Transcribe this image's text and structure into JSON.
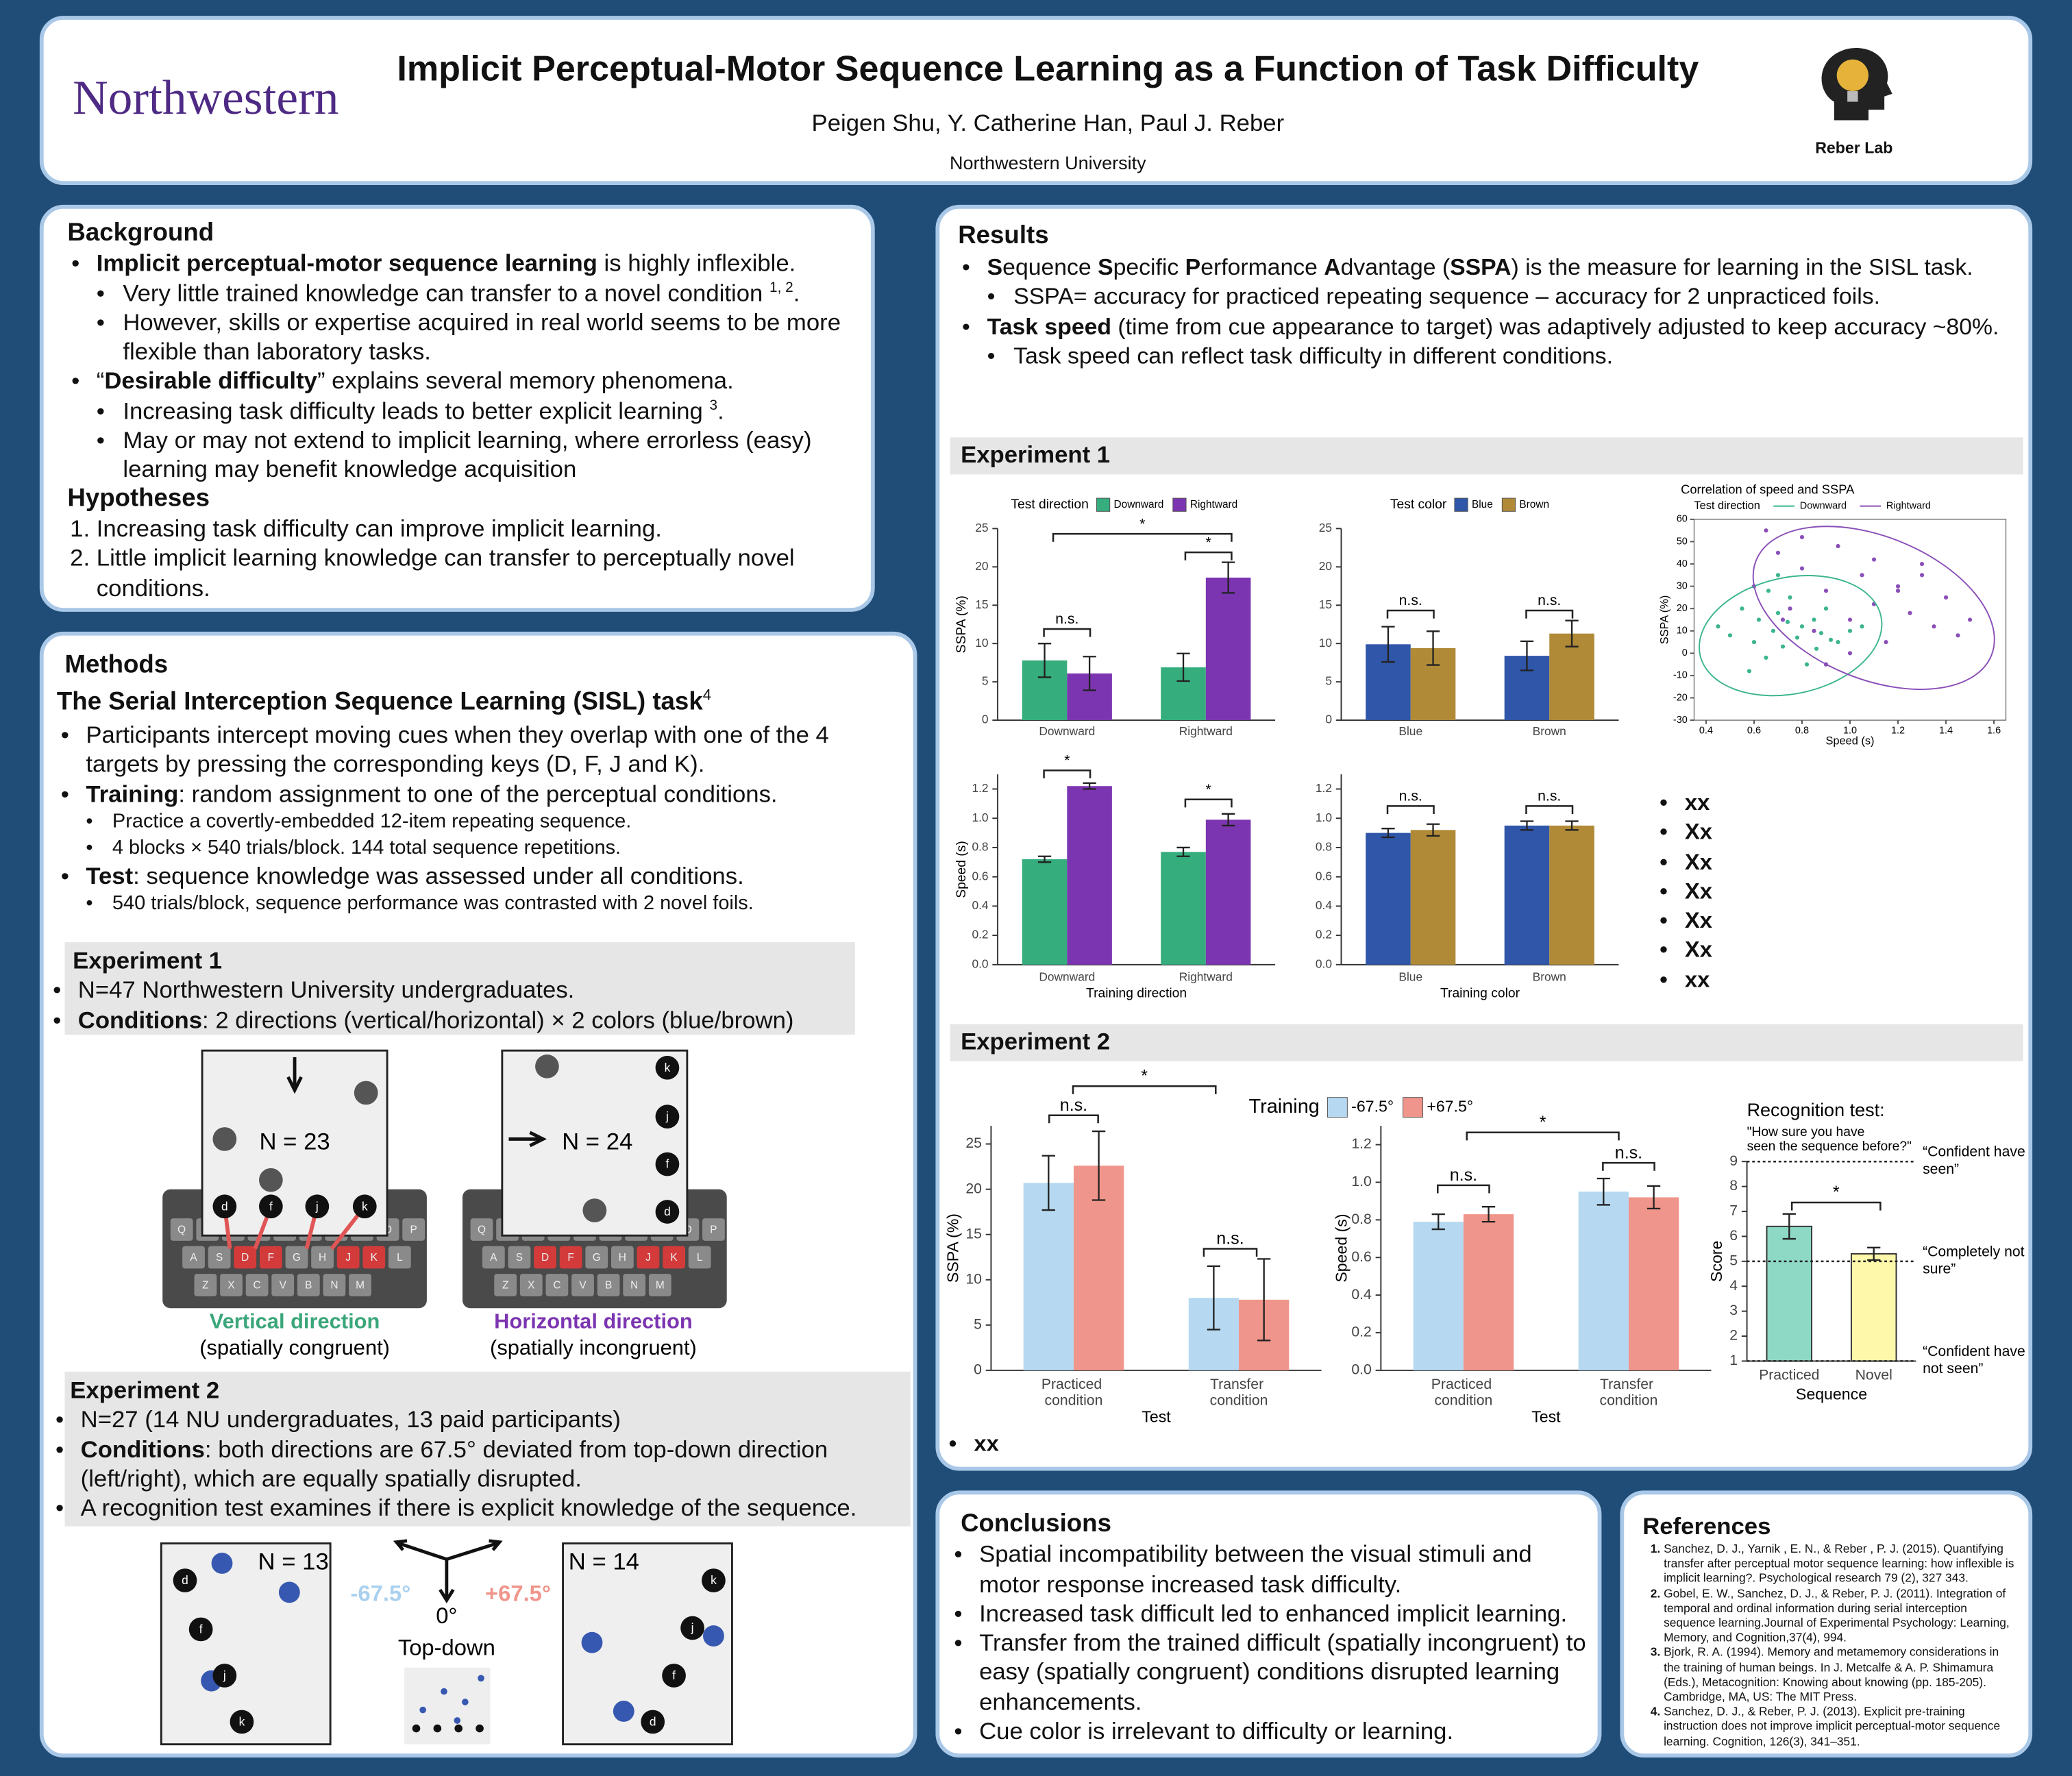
{
  "header": {
    "logo": "Northwestern",
    "title": "Implicit Perceptual-Motor Sequence Learning as a Function of Task Difficulty",
    "authors": "Peigen Shu, Y. Catherine Han, Paul J. Reber",
    "affiliation": "Northwestern University",
    "lab": "Reber Lab"
  },
  "background": {
    "heading": "Background",
    "items": [
      {
        "level": 1,
        "segs": [
          {
            "bold": "Implicit perceptual-motor sequence learning"
          },
          " is highly inflexible."
        ]
      },
      {
        "level": 2,
        "segs": [
          "Very little trained knowledge can transfer to a novel condition ",
          {
            "sup": "1, 2"
          },
          "."
        ]
      },
      {
        "level": 2,
        "segs": [
          "However, skills or expertise acquired in real world seems to be more flexible than laboratory tasks."
        ]
      },
      {
        "level": 1,
        "segs": [
          "“",
          {
            "bold": "Desirable difficulty"
          },
          "” explains several memory phenomena."
        ]
      },
      {
        "level": 2,
        "segs": [
          "Increasing task difficulty leads to better explicit learning ",
          {
            "sup": "3"
          },
          "."
        ]
      },
      {
        "level": 2,
        "segs": [
          "May or may not extend to implicit learning, where errorless (easy) learning may benefit knowledge acquisition"
        ]
      }
    ],
    "hypotheses_heading": "Hypotheses",
    "hypotheses": [
      "Increasing task difficulty can improve implicit learning.",
      "Little implicit learning knowledge can transfer to perceptually novel conditions."
    ]
  },
  "methods": {
    "heading": "Methods",
    "task_heading": [
      {
        "bold": "The Serial Interception Sequence Learning (SISL) task"
      },
      {
        "sup": "4"
      }
    ],
    "items": [
      {
        "level": 1,
        "segs": [
          "Participants intercept moving cues when they overlap with one of the 4 targets by pressing the corresponding keys (D, F, J and K)."
        ]
      },
      {
        "level": 1,
        "segs": [
          {
            "bold": "Training"
          },
          ": random assignment to one of the perceptual conditions."
        ]
      },
      {
        "level": 2,
        "segs": [
          "Practice a covertly-embedded 12-item repeating sequence."
        ]
      },
      {
        "level": 2,
        "segs": [
          "4 blocks × 540 trials/block. 144 total sequence repetitions."
        ]
      },
      {
        "level": 1,
        "segs": [
          {
            "bold": "Test"
          },
          ": sequence knowledge was assessed under all conditions."
        ]
      },
      {
        "level": 2,
        "segs": [
          "540 trials/block, sequence performance was contrasted with 2 novel foils."
        ]
      }
    ],
    "exp1": {
      "heading": "Experiment 1",
      "items": [
        {
          "level": 1,
          "segs": [
            "N=47 Northwestern University undergraduates."
          ]
        },
        {
          "level": 1,
          "segs": [
            {
              "bold": "Conditions"
            },
            ": 2 directions (vertical/horizontal) × 2 colors (blue/brown)"
          ]
        }
      ],
      "figures": [
        {
          "n": "N = 23",
          "targets": [
            "d",
            "f",
            "j",
            "k"
          ],
          "caption": "Vertical direction",
          "note": "(spatially congruent)"
        },
        {
          "n": "N = 24",
          "targets": [
            "k",
            "j",
            "f",
            "d"
          ],
          "caption": "Horizontal direction",
          "note": "(spatially incongruent)"
        }
      ],
      "keyboard": [
        [
          "Q",
          "W",
          "E",
          "R",
          "T",
          "Y",
          "U",
          "I",
          "O",
          "P"
        ],
        [
          "A",
          "S",
          "D",
          "F",
          "G",
          "H",
          "J",
          "K",
          "L"
        ],
        [
          "Z",
          "X",
          "C",
          "V",
          "B",
          "N",
          "M"
        ]
      ]
    },
    "exp2": {
      "heading": "Experiment 2",
      "items": [
        {
          "level": 1,
          "segs": [
            "N=27 (14 NU undergraduates, 13 paid participants)"
          ]
        },
        {
          "level": 1,
          "segs": [
            {
              "bold": "Conditions"
            },
            ": both directions are 67.5° deviated from top-down direction (left/right), which are equally spatially disrupted."
          ]
        },
        {
          "level": 1,
          "segs": [
            "A recognition test examines if there is explicit knowledge of the sequence."
          ]
        }
      ],
      "figures": [
        {
          "n": "N = 13",
          "targets": [
            "d",
            "f",
            "j",
            "k"
          ]
        },
        {
          "n": "N = 14",
          "targets": [
            "k",
            "j",
            "f",
            "d"
          ]
        }
      ],
      "angles": {
        "left": "-67.5°",
        "right": "+67.5°",
        "center": "0°",
        "label": "Top-down"
      }
    }
  },
  "results": {
    "heading": "Results",
    "items": [
      {
        "level": 1,
        "segs": [
          {
            "bold": "S"
          },
          "equence ",
          {
            "bold": "S"
          },
          "pecific ",
          {
            "bold": "P"
          },
          "erformance ",
          {
            "bold": "A"
          },
          "dvantage (",
          {
            "bold": "SSPA"
          },
          ") is the measure for learning in the SISL task."
        ]
      },
      {
        "level": 2,
        "segs": [
          "SSPA= accuracy for practiced repeating sequence – accuracy for 2 unpracticed foils."
        ]
      },
      {
        "level": 1,
        "segs": [
          {
            "bold": "Task speed"
          },
          " (time from cue appearance to target) was adaptively adjusted to keep accuracy ~80%."
        ]
      },
      {
        "level": 2,
        "segs": [
          "Task speed can reflect task difficulty in different conditions."
        ]
      }
    ],
    "exp1": {
      "heading": "Experiment 1",
      "charts": [
        {
          "type": "bar",
          "y_label": "SSPA (%)",
          "legend_title": "Test direction",
          "categories": [
            "Downward",
            "Rightward"
          ],
          "series": [
            {
              "name": "Downward",
              "color": "#35ad7d",
              "values": [
                7.8,
                6.9
              ],
              "errors": [
                2.2,
                1.8
              ]
            },
            {
              "name": "Rightward",
              "color": "#7c35b1",
              "values": [
                6.1,
                18.6
              ],
              "errors": [
                2.2,
                2.0
              ]
            }
          ],
          "ylim": [
            0,
            25
          ],
          "yticks": [
            0,
            5,
            10,
            15,
            20,
            25
          ],
          "annotations": [
            "*",
            "*",
            "n.s."
          ]
        },
        {
          "type": "bar",
          "legend_title": "Test color",
          "categories": [
            "Blue",
            "Brown"
          ],
          "series": [
            {
              "name": "Blue",
              "color": "#2f56a8",
              "values": [
                9.9,
                8.4
              ],
              "errors": [
                2.3,
                1.9
              ]
            },
            {
              "name": "Brown",
              "color": "#b08a37",
              "values": [
                9.4,
                11.3
              ],
              "errors": [
                2.2,
                1.7
              ]
            }
          ],
          "ylim": [
            0,
            25
          ],
          "yticks": [
            0,
            5,
            10,
            15,
            20,
            25
          ],
          "annotations": [
            "n.s.",
            "n.s."
          ]
        },
        {
          "type": "scatter",
          "title": "Correlation of speed and SSPA",
          "legend_title": "Test direction",
          "x_label": "Speed (s)",
          "y_label": "SSPA (%)",
          "series": [
            {
              "name": "Downward",
              "color": "#3bb58f",
              "x": [
                0.45,
                0.5,
                0.55,
                0.6,
                0.62,
                0.65,
                0.68,
                0.7,
                0.72,
                0.75,
                0.78,
                0.8,
                0.82,
                0.85,
                0.88,
                0.9,
                0.95,
                1.0,
                1.05,
                0.58,
                0.66,
                0.74,
                0.86,
                0.92,
                0.7
              ],
              "y": [
                12,
                8,
                20,
                5,
                15,
                -2,
                10,
                18,
                3,
                25,
                7,
                12,
                -5,
                15,
                9,
                20,
                5,
                10,
                12,
                -8,
                28,
                14,
                2,
                6,
                35
              ]
            },
            {
              "name": "Rightward",
              "color": "#8a4fb8",
              "x": [
                0.6,
                0.7,
                0.75,
                0.8,
                0.85,
                0.9,
                0.95,
                1.0,
                1.05,
                1.1,
                1.15,
                1.2,
                1.25,
                1.3,
                1.35,
                1.4,
                1.45,
                1.5,
                0.9,
                1.0,
                1.1,
                0.8,
                1.2,
                1.3,
                0.65,
                0.72
              ],
              "y": [
                30,
                45,
                20,
                38,
                10,
                28,
                48,
                15,
                35,
                22,
                5,
                30,
                18,
                40,
                12,
                25,
                8,
                15,
                -5,
                0,
                42,
                52,
                28,
                35,
                55,
                15
              ]
            }
          ],
          "xlim": [
            0.35,
            1.65
          ],
          "xticks": [
            0.4,
            0.6,
            0.8,
            {
              "value": 1,
              "label": "1.0"
            },
            1.2,
            1.4,
            1.6
          ],
          "ylim": [
            -30,
            60
          ],
          "yticks": [
            -30,
            -20,
            -10,
            0,
            10,
            20,
            30,
            40,
            50,
            60
          ]
        },
        {
          "type": "bar",
          "y_label": "Speed (s)",
          "x_label": "Training direction",
          "categories": [
            "Downward",
            "Rightward"
          ],
          "series": [
            {
              "color": "#35ad7d",
              "values": [
                0.72,
                0.77
              ],
              "errors": [
                0.02,
                0.03
              ]
            },
            {
              "color": "#7c35b1",
              "values": [
                1.22,
                0.99
              ],
              "errors": [
                0.02,
                0.04
              ]
            }
          ],
          "ylim": [
            0,
            1.3
          ],
          "yticks": [
            {
              "value": 0,
              "label": "0.0"
            },
            0.2,
            0.4,
            0.6,
            0.8,
            {
              "value": 1,
              "label": "1.0"
            },
            1.2
          ],
          "annotations": [
            "*",
            "*"
          ]
        },
        {
          "type": "bar",
          "x_label": "Training color",
          "categories": [
            "Blue",
            "Brown"
          ],
          "series": [
            {
              "color": "#2f56a8",
              "values": [
                0.9,
                0.95
              ],
              "errors": [
                0.03,
                0.03
              ]
            },
            {
              "color": "#b08a37",
              "values": [
                0.92,
                0.95
              ],
              "errors": [
                0.04,
                0.03
              ]
            }
          ],
          "ylim": [
            0,
            1.3
          ],
          "yticks": [
            {
              "value": 0,
              "label": "0.0"
            },
            0.2,
            0.4,
            0.6,
            0.8,
            {
              "value": 1,
              "label": "1.0"
            },
            1.2
          ],
          "annotations": [
            "n.s.",
            "n.s."
          ]
        }
      ],
      "notes": [
        "xx",
        "Xx",
        "Xx",
        "Xx",
        "Xx",
        "Xx",
        "xx"
      ]
    },
    "exp2": {
      "heading": "Experiment 2",
      "charts": [
        {
          "type": "bar",
          "y_label": "SSPA (%)",
          "x_label": "Test",
          "legend_title": "Training",
          "categories": [
            "Practiced condition",
            "Transfer condition"
          ],
          "series": [
            {
              "name": "-67.5°",
              "color": "#b6d9f1",
              "values": [
                20.7,
                8.0
              ],
              "errors": [
                3.0,
                3.5
              ]
            },
            {
              "name": "+67.5°",
              "color": "#f0958b",
              "values": [
                22.6,
                7.8
              ],
              "errors": [
                3.8,
                4.5
              ]
            }
          ],
          "ylim": [
            0,
            27
          ],
          "yticks": [
            0,
            5,
            10,
            15,
            20,
            25
          ],
          "annotations": [
            "*",
            "n.s.",
            "n.s."
          ]
        },
        {
          "type": "bar",
          "y_label": "Speed (s)",
          "x_label": "Test",
          "categories": [
            "Practiced condition",
            "Transfer condition"
          ],
          "series": [
            {
              "color": "#b6d9f1",
              "values": [
                0.79,
                0.95
              ],
              "errors": [
                0.04,
                0.07
              ]
            },
            {
              "color": "#f0958b",
              "values": [
                0.83,
                0.92
              ],
              "errors": [
                0.04,
                0.06
              ]
            }
          ],
          "ylim": [
            0,
            1.3
          ],
          "yticks": [
            {
              "value": 0,
              "label": "0.0"
            },
            0.2,
            0.4,
            0.6,
            0.8,
            {
              "value": 1,
              "label": "1.0"
            },
            1.2
          ],
          "annotations": [
            "*",
            "n.s.",
            "n.s."
          ]
        },
        {
          "type": "bar",
          "title": "Recognition test:",
          "subtitle": "\"How sure you have seen the sequence before?\"",
          "y_label": "Score",
          "x_label": "Sequence",
          "categories": [
            "Practiced",
            "Novel"
          ],
          "series": [
            {
              "colors": [
                "#8ed8c6",
                "#fdf8aa"
              ],
              "values": [
                6.4,
                5.3
              ],
              "errors": [
                0.5,
                0.25
              ]
            }
          ],
          "ylim": [
            1,
            9
          ],
          "yticks": [
            1,
            2,
            3,
            4,
            5,
            6,
            7,
            8,
            9
          ],
          "reference_lines": [
            {
              "value": 9,
              "label": "“Confident have seen”"
            },
            {
              "value": 5,
              "label": "“Completely not sure”"
            },
            {
              "value": 1,
              "label": "“Confident have not seen”"
            }
          ],
          "annotations": [
            "*"
          ]
        }
      ],
      "notes": [
        "xx"
      ]
    }
  },
  "conclusions": {
    "heading": "Conclusions",
    "items": [
      "Spatial incompatibility between the visual stimuli and motor response increased task difficulty.",
      "Increased task difficult led to enhanced implicit learning.",
      "Transfer from the trained difficult (spatially incongruent) to easy (spatially congruent) conditions disrupted learning enhancements.",
      "Cue color is irrelevant to difficulty or learning."
    ]
  },
  "references": {
    "heading": "References",
    "items": [
      "Sanchez, D. J., Yarnik , E. N., & Reber , P. J. (2015). Quantifying transfer after perceptual motor sequence learning: how inflexible is implicit learning?. Psychological research 79 (2), 327 343.",
      "Gobel, E. W., Sanchez, D. J., & Reber, P. J. (2011). Integration of temporal and ordinal information during serial interception sequence learning.Journal of Experimental Psychology: Learning, Memory, and Cognition,37(4), 994.",
      "Bjork, R. A. (1994). Memory and metamemory considerations in the training of human beings. In J. Metcalfe & A. P. Shimamura (Eds.), Metacognition: Knowing about knowing (pp. 185-205). Cambridge, MA, US: The MIT Press.",
      "Sanchez, D. J., & Reber, P. J. (2013). Explicit pre-training instruction does not improve implicit perceptual-motor sequence learning. Cognition, 126(3), 341–351."
    ]
  }
}
